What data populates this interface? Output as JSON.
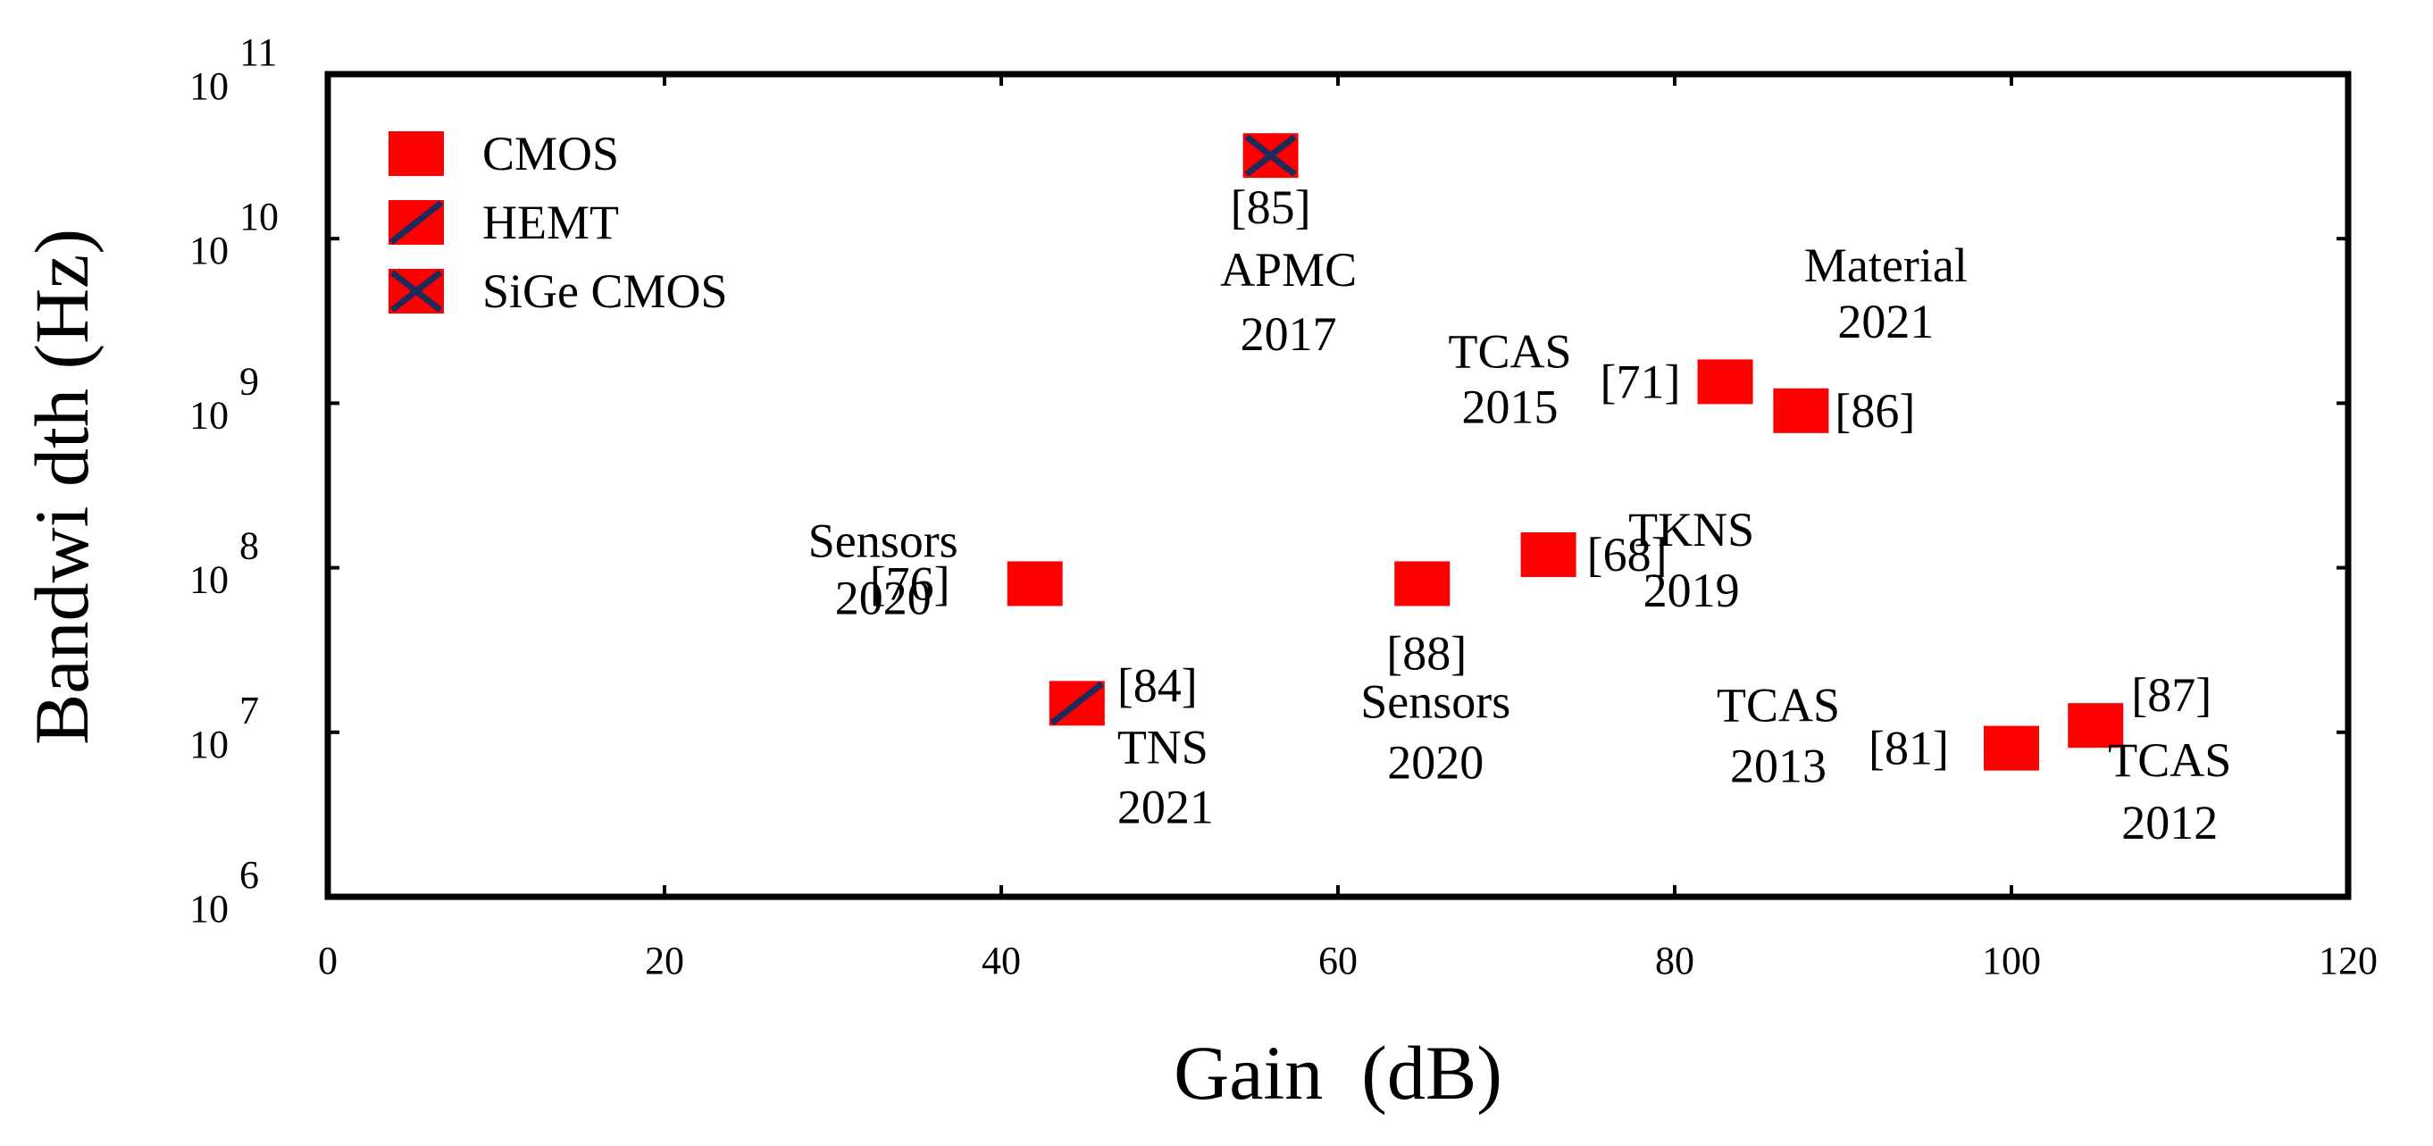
{
  "chart_data": {
    "type": "scatter",
    "xlabel": "Gain  (dB)",
    "ylabel": "Bandwi dth (Hz)",
    "xlim": [
      0,
      120
    ],
    "ylim": [
      1000000,
      100000000000
    ],
    "yscale": "log",
    "x_ticks": [
      "0",
      "20",
      "40",
      "60",
      "80",
      "100",
      "120"
    ],
    "y_ticks": [
      {
        "base": "10",
        "exp": "6"
      },
      {
        "base": "10",
        "exp": "7"
      },
      {
        "base": "10",
        "exp": "8"
      },
      {
        "base": "10",
        "exp": "9"
      },
      {
        "base": "10",
        "exp": "10"
      },
      {
        "base": "10",
        "exp": "11"
      }
    ],
    "grid": false,
    "legend_position": "top-left",
    "legend": [
      {
        "name": "CMOS",
        "marker": "square"
      },
      {
        "name": "HEMT",
        "marker": "square-slash"
      },
      {
        "name": "SiGe CMOS",
        "marker": "square-x"
      }
    ],
    "colors": {
      "marker_fill": "#ff0000",
      "marker_cross": "#1f2a5c"
    },
    "points": [
      {
        "x": 42,
        "y": 80000000,
        "series": "CMOS",
        "ref": "[76]",
        "venue": "Sensors",
        "year": "2020"
      },
      {
        "x": 44.5,
        "y": 15000000,
        "series": "HEMT",
        "ref": "[84]",
        "venue": "TNS",
        "year": "2021"
      },
      {
        "x": 56,
        "y": 32000000000,
        "series": "SiGe CMOS",
        "ref": "[85]",
        "venue": "APMC",
        "year": "2017"
      },
      {
        "x": 65,
        "y": 80000000,
        "series": "CMOS",
        "ref": "[88]",
        "venue": "Sensors",
        "year": "2020"
      },
      {
        "x": 72.5,
        "y": 120000000,
        "series": "CMOS",
        "ref": "[68]",
        "venue": "TKNS",
        "year": "2019"
      },
      {
        "x": 83,
        "y": 1350000000,
        "series": "CMOS",
        "ref": "[71]",
        "venue": "TCAS",
        "year": "2015"
      },
      {
        "x": 87.5,
        "y": 900000000,
        "series": "CMOS",
        "ref": "[86]",
        "venue": "Material",
        "year": "2021"
      },
      {
        "x": 100,
        "y": 8000000,
        "series": "CMOS",
        "ref": "[81]",
        "venue": "TCAS",
        "year": "2013"
      },
      {
        "x": 105,
        "y": 11000000,
        "series": "CMOS",
        "ref": "[87]",
        "venue": "TCAS",
        "year": "2012"
      }
    ]
  }
}
